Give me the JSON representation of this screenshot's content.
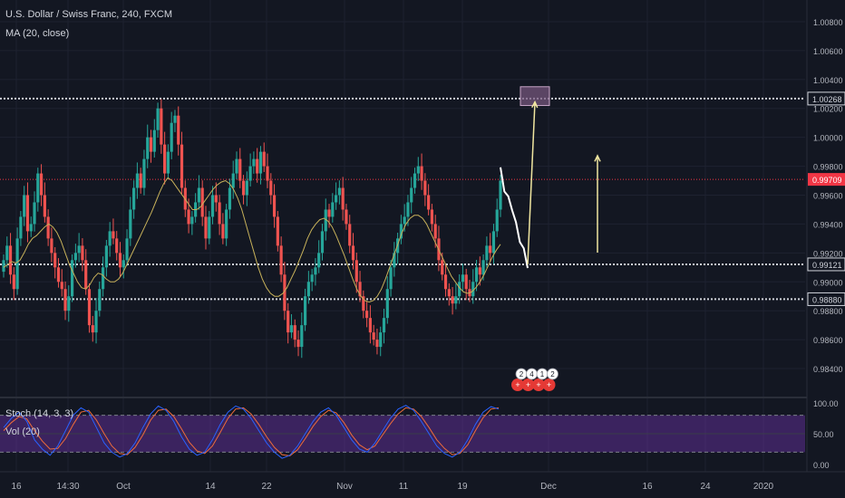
{
  "header": {
    "title": "U.S. Dollar / Swiss Franc, 240, FXCM",
    "ma_label": "MA (20, close)"
  },
  "indicators": {
    "stoch_label": "Stoch (14, 3, 3)",
    "vol_label": "Vol (20)"
  },
  "colors": {
    "background": "#131722",
    "up_candle": "#26a69a",
    "down_candle": "#ef5350",
    "ma_line": "#c7b15a",
    "price_line": "#f23645",
    "projection": "#ffffff",
    "arrow": "#f0e6a0",
    "target_box": "#7b5a80",
    "stoch_band": "#5c2d91",
    "stoch_k": "#2962ff",
    "stoch_d": "#ef6c3a"
  },
  "chart_data": {
    "type": "candlestick",
    "ylim": [
      0.983,
      1.009
    ],
    "price_ticks": [
      "1.00800",
      "1.00600",
      "1.00400",
      "1.00200",
      "1.00000",
      "0.99800",
      "0.99600",
      "0.99400",
      "0.99200",
      "0.99000",
      "0.98800",
      "0.98600",
      "0.98400"
    ],
    "x_labels": [
      "16",
      "14:30",
      "Oct",
      "14",
      "22",
      "Nov",
      "11",
      "19",
      "Dec",
      "16",
      "24",
      "2020"
    ],
    "current_price": "0.99709",
    "levels": [
      {
        "label": "1.00268",
        "value": 1.00268
      },
      {
        "label": "0.99121",
        "value": 0.99121
      },
      {
        "label": "0.98880",
        "value": 0.9888
      }
    ],
    "target_zone": [
      1.0022,
      1.0035
    ],
    "stoch_ticks": [
      "100.00",
      "50.00",
      "0.00"
    ],
    "stoch_band": [
      20,
      80
    ],
    "event_badges": [
      "2",
      "4",
      "1",
      "2"
    ],
    "close_series": [
      0.9915,
      0.9925,
      0.9905,
      0.9895,
      0.993,
      0.9945,
      0.996,
      0.9935,
      0.994,
      0.9955,
      0.9975,
      0.996,
      0.9945,
      0.993,
      0.992,
      0.991,
      0.99,
      0.9895,
      0.988,
      0.989,
      0.9915,
      0.992,
      0.9925,
      0.9915,
      0.9895,
      0.987,
      0.9865,
      0.988,
      0.9895,
      0.991,
      0.9925,
      0.9935,
      0.993,
      0.992,
      0.991,
      0.9915,
      0.993,
      0.995,
      0.9965,
      0.9975,
      0.9965,
      0.9985,
      1.0,
      0.999,
      1.0005,
      1.002,
      0.9995,
      0.9975,
      0.999,
      1.001,
      1.0015,
      0.9995,
      0.9965,
      0.995,
      0.994,
      0.9945,
      0.9955,
      0.9965,
      0.9945,
      0.993,
      0.9945,
      0.996,
      0.9955,
      0.994,
      0.993,
      0.995,
      0.9965,
      0.9975,
      0.9985,
      0.997,
      0.996,
      0.997,
      0.998,
      0.9985,
      0.9975,
      0.999,
      0.998,
      0.997,
      0.996,
      0.9945,
      0.9925,
      0.9905,
      0.988,
      0.9865,
      0.987,
      0.986,
      0.9855,
      0.987,
      0.989,
      0.99,
      0.9905,
      0.991,
      0.992,
      0.9935,
      0.995,
      0.9945,
      0.9955,
      0.996,
      0.9965,
      0.995,
      0.994,
      0.9925,
      0.9915,
      0.99,
      0.989,
      0.988,
      0.9875,
      0.9865,
      0.986,
      0.9855,
      0.9865,
      0.9875,
      0.9895,
      0.991,
      0.992,
      0.993,
      0.994,
      0.9945,
      0.9955,
      0.9965,
      0.9975,
      0.998,
      0.997,
      0.996,
      0.995,
      0.994,
      0.993,
      0.9915,
      0.9905,
      0.9895,
      0.989,
      0.9885,
      0.989,
      0.99,
      0.9905,
      0.9895,
      0.989,
      0.99,
      0.991,
      0.9905,
      0.9915,
      0.9925,
      0.992,
      0.9935,
      0.995,
      0.997
    ],
    "ma_series": [
      0.991,
      0.9912,
      0.9914,
      0.9913,
      0.9915,
      0.992,
      0.9926,
      0.993,
      0.9932,
      0.9935,
      0.9938,
      0.994,
      0.9938,
      0.9934,
      0.9928,
      0.992,
      0.9912,
      0.9906,
      0.99,
      0.9896,
      0.9895,
      0.9898,
      0.9903,
      0.9906,
      0.9905,
      0.9902,
      0.99,
      0.99,
      0.9902,
      0.9906,
      0.9912,
      0.9918,
      0.9924,
      0.993,
      0.9936,
      0.9942,
      0.9948,
      0.9955,
      0.9962,
      0.9968,
      0.9972,
      0.997,
      0.9966,
      0.9962,
      0.9958,
      0.9954,
      0.995,
      0.995,
      0.9952,
      0.9956,
      0.996,
      0.9964,
      0.9967,
      0.9969,
      0.997,
      0.9968,
      0.9964,
      0.9958,
      0.995,
      0.994,
      0.993,
      0.992,
      0.991,
      0.9902,
      0.9896,
      0.9892,
      0.989,
      0.989,
      0.9892,
      0.9896,
      0.9902,
      0.9908,
      0.9915,
      0.9922,
      0.993,
      0.9936,
      0.994,
      0.9943,
      0.9944,
      0.9942,
      0.9938,
      0.9932,
      0.9925,
      0.9918,
      0.991,
      0.9902,
      0.9895,
      0.989,
      0.9887,
      0.9886,
      0.9887,
      0.989,
      0.9895,
      0.9902,
      0.991,
      0.9918,
      0.9926,
      0.9934,
      0.994,
      0.9944,
      0.9946,
      0.9946,
      0.9944,
      0.994,
      0.9934,
      0.9928,
      0.9922,
      0.9916,
      0.991,
      0.9904,
      0.99,
      0.9896,
      0.9893,
      0.9892,
      0.9893,
      0.9896,
      0.99,
      0.9905,
      0.9911,
      0.9917,
      0.9922,
      0.9926
    ],
    "projection_path": [
      0.9978,
      0.9965,
      0.9958,
      0.9952,
      0.994,
      0.993,
      0.9922,
      0.9912
    ],
    "stoch_k": [
      60,
      75,
      85,
      70,
      40,
      25,
      15,
      30,
      55,
      80,
      92,
      85,
      60,
      35,
      20,
      12,
      18,
      35,
      60,
      82,
      95,
      88,
      70,
      45,
      25,
      15,
      20,
      40,
      65,
      85,
      95,
      90,
      75,
      55,
      35,
      20,
      10,
      15,
      30,
      50,
      70,
      85,
      92,
      80,
      60,
      40,
      25,
      20,
      35,
      55,
      75,
      90,
      96,
      88,
      70,
      50,
      30,
      18,
      12,
      20,
      40,
      65,
      85,
      94,
      90
    ],
    "stoch_d": [
      55,
      68,
      78,
      74,
      55,
      38,
      25,
      26,
      42,
      65,
      85,
      88,
      72,
      50,
      30,
      18,
      16,
      28,
      48,
      72,
      88,
      90,
      78,
      58,
      36,
      22,
      18,
      30,
      52,
      75,
      90,
      92,
      82,
      65,
      45,
      28,
      16,
      14,
      24,
      42,
      62,
      78,
      88,
      84,
      68,
      48,
      32,
      24,
      30,
      48,
      66,
      82,
      92,
      90,
      78,
      60,
      40,
      26,
      16,
      18,
      32,
      55,
      76,
      90,
      92
    ]
  }
}
